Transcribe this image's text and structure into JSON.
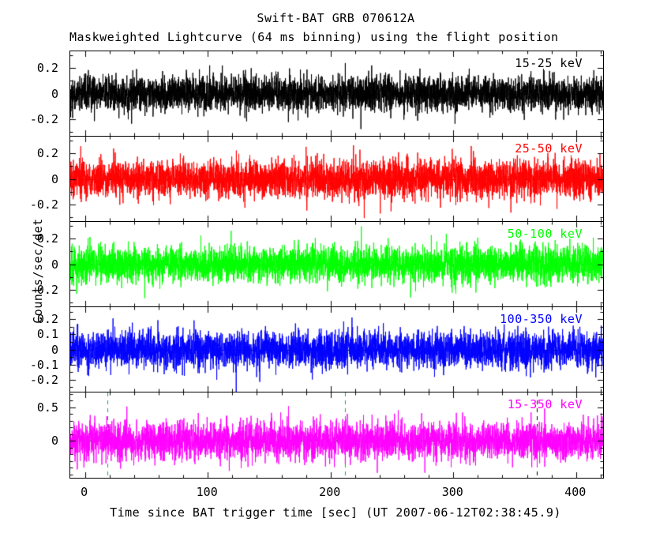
{
  "chart_data": {
    "type": "line",
    "title": "Swift-BAT GRB 070612A",
    "subtitle": "Maskweighted Lightcurve (64 ms binning) using the flight position",
    "xlabel": "Time since BAT trigger time [sec] (UT 2007-06-12T02:38:45.9)",
    "ylabel": "Counts/sec/det",
    "xlim": [
      -12,
      422
    ],
    "x_major_ticks": [
      0,
      100,
      200,
      300,
      400
    ],
    "x_minor_step": 20,
    "bin_sec": 0.064,
    "n_points": 4300,
    "background_color": "#ffffff",
    "axis_color": "#000000",
    "panels": [
      {
        "label": "15-25 keV",
        "color": "#000000",
        "ylim": [
          -0.33,
          0.33
        ],
        "yticks": [
          0.2,
          0,
          -0.2
        ],
        "y_minor": 0.1,
        "sigma": 0.068,
        "seed": 101
      },
      {
        "label": "25-50 keV",
        "color": "#ff0000",
        "ylim": [
          -0.33,
          0.33
        ],
        "yticks": [
          0.2,
          0,
          -0.2
        ],
        "y_minor": 0.1,
        "sigma": 0.075,
        "seed": 202
      },
      {
        "label": "50-100 keV",
        "color": "#00ff00",
        "ylim": [
          -0.33,
          0.33
        ],
        "yticks": [
          0.2,
          0,
          -0.2
        ],
        "y_minor": 0.1,
        "sigma": 0.07,
        "seed": 303
      },
      {
        "label": "100-350 keV",
        "color": "#0000ff",
        "ylim": [
          -0.28,
          0.28
        ],
        "yticks": [
          0.2,
          0.1,
          0,
          -0.1,
          -0.2
        ],
        "y_minor": 0.05,
        "sigma": 0.062,
        "seed": 404
      },
      {
        "label": "15-350 keV",
        "color": "#ff00ff",
        "ylim": [
          -0.55,
          0.72
        ],
        "yticks": [
          0.5,
          0
        ],
        "y_minor": 0.1,
        "sigma": 0.14,
        "seed": 505
      }
    ],
    "zero_line": {
      "color": "#000000",
      "dash": [
        6,
        6
      ]
    },
    "markers": {
      "panel": 4,
      "green_color": "#00bb44",
      "green_vlines": [
        18,
        212
      ],
      "black_vlines": [
        368
      ]
    }
  }
}
